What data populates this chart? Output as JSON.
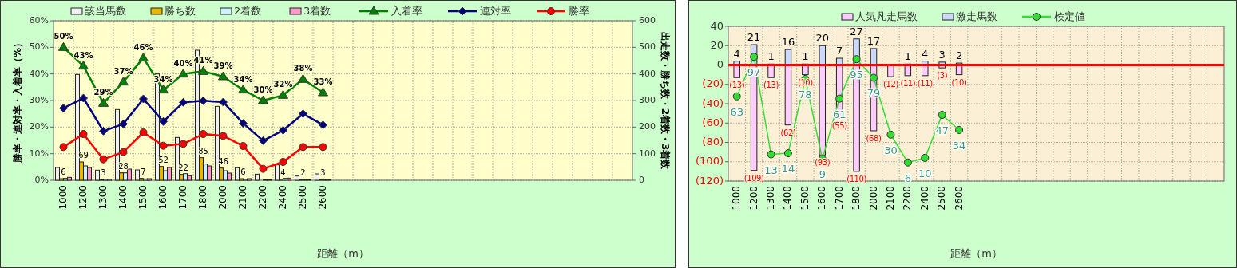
{
  "chart_data": [
    {
      "type": "bar",
      "xlabel": "距離（m）",
      "ylabel": "勝率・連対率・入着率（%）",
      "y2label": "出走数・勝ち数・2着数・3着数",
      "legend": "top",
      "grid": true,
      "categories": [
        "1000",
        "1200",
        "1300",
        "1400",
        "1500",
        "1600",
        "1700",
        "1800",
        "2000",
        "2100",
        "2200",
        "2400",
        "2500",
        "2600",
        null,
        null,
        null,
        null,
        null,
        null,
        null,
        null,
        null,
        null,
        null,
        null,
        null,
        null,
        null
      ],
      "ylim": [
        0,
        60
      ],
      "yticks": [
        {
          "value": 0,
          "label": "0%"
        },
        {
          "value": 10,
          "label": "10%"
        },
        {
          "value": 20,
          "label": "20%"
        },
        {
          "value": 30,
          "label": "30%"
        },
        {
          "value": 40,
          "label": "40%"
        },
        {
          "value": 50,
          "label": "50%"
        },
        {
          "value": 60,
          "label": "60%"
        }
      ],
      "y2lim": [
        0,
        600
      ],
      "y2ticks": [
        0,
        100,
        200,
        300,
        400,
        500,
        600
      ],
      "series": [
        {
          "name": "該当馬数",
          "axis": "y2",
          "color": "#f0f0f0",
          "values": [
            48,
            398,
            38,
            266,
            39,
            400,
            161,
            489,
            278,
            47,
            23,
            58,
            16,
            24,
            null,
            null,
            null,
            null,
            null,
            null,
            null,
            null,
            null,
            null,
            null,
            null,
            null,
            null,
            null
          ]
        },
        {
          "name": "勝ち数",
          "axis": "y2",
          "color": "#e6b800",
          "values": [
            6,
            69,
            3,
            28,
            7,
            52,
            22,
            85,
            46,
            6,
            null,
            4,
            2,
            3,
            null,
            null,
            null,
            null,
            null,
            null,
            null,
            null,
            null,
            null,
            null,
            null,
            null,
            null,
            null
          ],
          "value_labels": [
            "6",
            "69",
            "3",
            "28",
            "7",
            "52",
            "22",
            "85",
            "46",
            "6",
            null,
            "4",
            "2",
            "3",
            null,
            null,
            null,
            null,
            null,
            null,
            null,
            null,
            null,
            null,
            null,
            null,
            null,
            null,
            null
          ]
        },
        {
          "name": "2着数",
          "axis": "y2",
          "color": "#ccf2ff",
          "values": [
            7,
            54,
            4,
            28,
            5,
            36,
            25,
            61,
            36,
            4,
            2,
            7,
            2,
            2,
            null,
            null,
            null,
            null,
            null,
            null,
            null,
            null,
            null,
            null,
            null,
            null,
            null,
            null,
            null
          ]
        },
        {
          "name": "3着数",
          "axis": "y2",
          "color": "#ff99cc",
          "values": [
            11,
            48,
            4,
            42,
            6,
            48,
            17,
            54,
            27,
            6,
            3,
            8,
            2,
            3,
            null,
            null,
            null,
            null,
            null,
            null,
            null,
            null,
            null,
            null,
            null,
            null,
            null,
            null,
            null
          ]
        },
        {
          "name": "入着率",
          "type": "line",
          "axis": "y",
          "color": "#008000",
          "marker": "triangle",
          "values": [
            50,
            43,
            29,
            37,
            46,
            34,
            40,
            41,
            39,
            34,
            30,
            32,
            38,
            33,
            null,
            null,
            null,
            null,
            null,
            null,
            null,
            null,
            null,
            null,
            null,
            null,
            null,
            null,
            null
          ],
          "value_labels": [
            "50%",
            "43%",
            "29%",
            "37%",
            "46%",
            "34%",
            "40%",
            "41%",
            "39%",
            "34%",
            "30%",
            "32%",
            "38%",
            "33%",
            null,
            null,
            null,
            null,
            null,
            null,
            null,
            null,
            null,
            null,
            null,
            null,
            null,
            null,
            null
          ]
        },
        {
          "name": "連対率",
          "type": "line",
          "axis": "y",
          "color": "#000080",
          "marker": "diamond",
          "values": [
            27.1,
            30.9,
            18.5,
            21.2,
            30.6,
            22.1,
            29.3,
            29.9,
            29.4,
            21.4,
            14.9,
            18.8,
            25.0,
            20.8,
            null,
            null,
            null,
            null,
            null,
            null,
            null,
            null,
            null,
            null,
            null,
            null,
            null,
            null,
            null
          ]
        },
        {
          "name": "勝率",
          "type": "line",
          "axis": "y",
          "color": "#ff0000",
          "marker": "circle",
          "values": [
            12.5,
            17.4,
            7.9,
            10.6,
            18.0,
            13.0,
            13.7,
            17.4,
            16.7,
            12.9,
            4.3,
            6.9,
            12.5,
            12.5,
            null,
            null,
            null,
            null,
            null,
            null,
            null,
            null,
            null,
            null,
            null,
            null,
            null,
            null,
            null
          ]
        }
      ]
    },
    {
      "type": "bar",
      "xlabel": "距離（m）",
      "legend": "top",
      "grid": true,
      "stacked": true,
      "categories": [
        "1000",
        "1200",
        "1300",
        "1400",
        "1500",
        "1600",
        "1700",
        "1800",
        "2000",
        "2100",
        "2200",
        "2400",
        "2500",
        "2600",
        null,
        null,
        null,
        null,
        null,
        null,
        null,
        null,
        null,
        null,
        null,
        null,
        null,
        null,
        null
      ],
      "ylim": [
        -120,
        40
      ],
      "yticks": [
        {
          "value": -120,
          "label": "(120)"
        },
        {
          "value": -100,
          "label": "(100)"
        },
        {
          "value": -80,
          "label": "(80)"
        },
        {
          "value": -60,
          "label": "(60)"
        },
        {
          "value": -40,
          "label": "(40)"
        },
        {
          "value": -20,
          "label": "(20)"
        },
        0,
        20,
        40
      ],
      "y2lim": [
        -10,
        123.3
      ],
      "ref_lines": [
        {
          "axis": "y",
          "value": 0,
          "color": "#ff0000"
        }
      ],
      "series": [
        {
          "name": "人気凡走馬数",
          "color": "#ffccff",
          "values": [
            -13,
            -109,
            -13,
            -62,
            -10,
            -93,
            -55,
            -110,
            -68,
            -12,
            -11,
            -11,
            -3,
            -10,
            null,
            null,
            null,
            null,
            null,
            null,
            null,
            null,
            null,
            null,
            null,
            null,
            null,
            null,
            null
          ],
          "value_labels": [
            "(13)",
            "(109)",
            "(13)",
            "(62)",
            "(10)",
            "(93)",
            "(55)",
            "(110)",
            "(68)",
            "(12)",
            "(11)",
            "(11)",
            "(3)",
            "(10)",
            null,
            null,
            null,
            null,
            null,
            null,
            null,
            null,
            null,
            null,
            null,
            null,
            null,
            null,
            null
          ]
        },
        {
          "name": "激走馬数",
          "color": "#ccd9ff",
          "values": [
            4,
            21,
            1,
            16,
            1,
            20,
            7,
            27,
            17,
            null,
            1,
            4,
            3,
            2,
            null,
            null,
            null,
            null,
            null,
            null,
            null,
            null,
            null,
            null,
            null,
            null,
            null,
            null,
            null
          ],
          "value_labels": [
            "4",
            "21",
            "1",
            "16",
            "1",
            "20",
            "7",
            "27",
            "17",
            null,
            "1",
            "4",
            "3",
            "2",
            null,
            null,
            null,
            null,
            null,
            null,
            null,
            null,
            null,
            null,
            null,
            null,
            null,
            null,
            null
          ]
        },
        {
          "name": "検定値",
          "type": "line",
          "axis": "y2",
          "color": "#33dd33",
          "marker": "circle",
          "values": [
            63,
            97,
            13,
            14,
            78,
            9,
            61,
            95,
            79,
            30,
            6,
            10,
            47,
            34,
            null,
            null,
            null,
            null,
            null,
            null,
            null,
            null,
            null,
            null,
            null,
            null,
            null,
            null,
            null
          ],
          "value_labels": [
            "63",
            "97",
            "13",
            "14",
            "78",
            "9",
            "61",
            "95",
            "79",
            "30",
            "6",
            "10",
            "47",
            "34",
            null,
            null,
            null,
            null,
            null,
            null,
            null,
            null,
            null,
            null,
            null,
            null,
            null,
            null,
            null
          ]
        }
      ]
    }
  ]
}
